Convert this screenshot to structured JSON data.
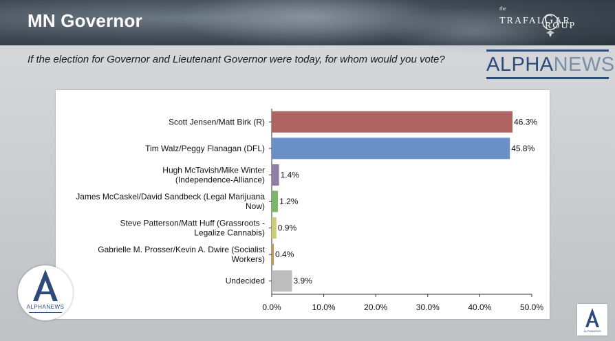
{
  "header": {
    "title": "MN Governor",
    "trafalgar_the": "the",
    "trafalgar_line1": "TRAFAL",
    "trafalgar_g": "G",
    "trafalgar_line1b": "AR",
    "trafalgar_line2": "ROUP"
  },
  "question": "If the election for Governor and Lieutenant Governor were today, for whom would you vote?",
  "alphanews": {
    "part1": "ALPHA",
    "part2": "NEWS"
  },
  "logo_left": {
    "letter": "A",
    "caption": "ALPHANEWS"
  },
  "logo_right": {
    "letter": "A",
    "caption": "ALPHANEWS"
  },
  "chart_data": {
    "type": "bar",
    "orientation": "horizontal",
    "categories": [
      [
        "Scott Jensen/Matt Birk (R)"
      ],
      [
        "Tim Walz/Peggy Flanagan (DFL)"
      ],
      [
        "Hugh McTavish/Mike Winter",
        "(Independence-Alliance)"
      ],
      [
        "James McCaskel/David Sandbeck (Legal Marijuana",
        "Now)"
      ],
      [
        "Steve Patterson/Matt Huff (Grassroots -",
        "Legalize Cannabis)"
      ],
      [
        "Gabrielle M. Prosser/Kevin A. Dwire (Socialist",
        "Workers)"
      ],
      [
        "Undecided"
      ]
    ],
    "values": [
      46.3,
      45.8,
      1.4,
      1.2,
      0.9,
      0.4,
      3.9
    ],
    "value_labels": [
      "46.3%",
      "45.8%",
      "1.4%",
      "1.2%",
      "0.9%",
      "0.4%",
      "3.9%"
    ],
    "colors": [
      "#b06464",
      "#6b90c8",
      "#8f7fa6",
      "#79b86a",
      "#cfcc7a",
      "#c99a4a",
      "#bdbdbd"
    ],
    "xlim": [
      0,
      50
    ],
    "xticks": [
      "0.0%",
      "10.0%",
      "20.0%",
      "30.0%",
      "40.0%",
      "50.0%"
    ],
    "xtick_values": [
      0,
      10,
      20,
      30,
      40,
      50
    ],
    "grid": false
  }
}
